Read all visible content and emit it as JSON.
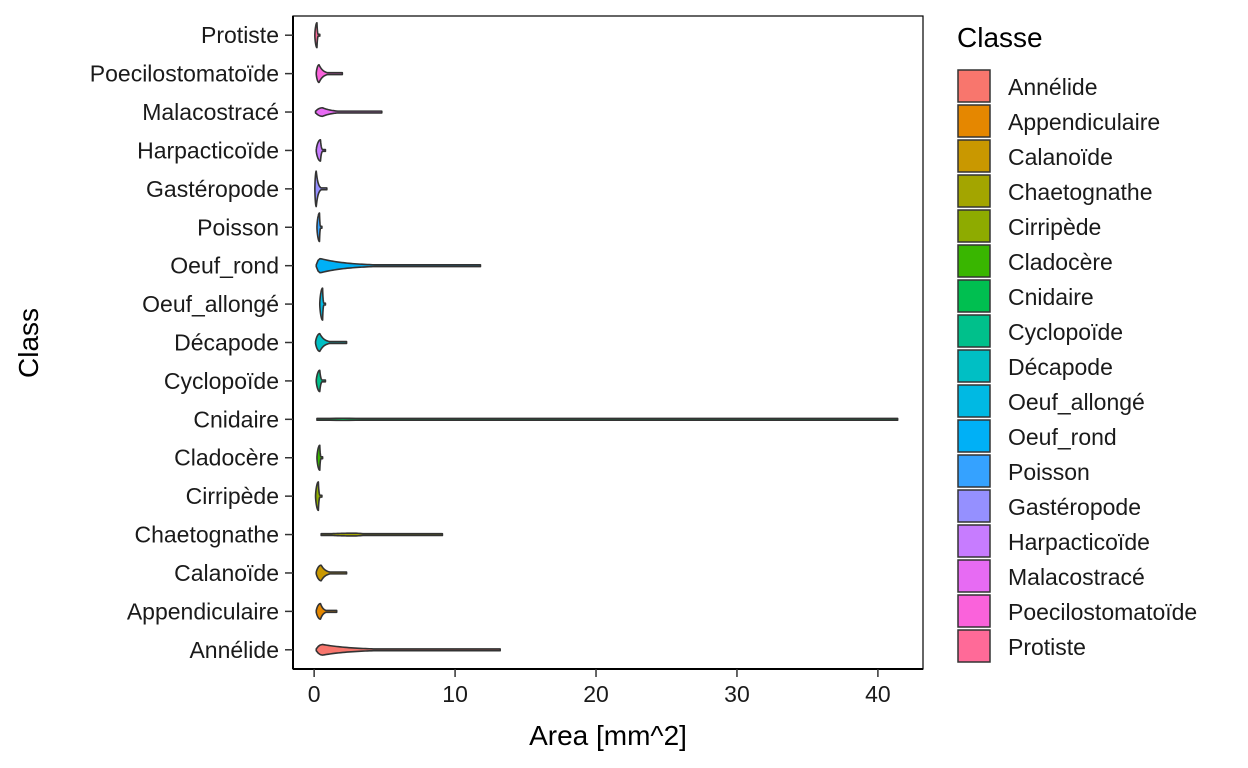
{
  "chart_data": {
    "type": "violin",
    "orientation": "horizontal",
    "xlabel": "Area [mm^2]",
    "ylabel": "Class",
    "xlim": [
      -1.5,
      43.2
    ],
    "xticks": [
      0,
      10,
      20,
      30,
      40
    ],
    "grid": false,
    "legend": {
      "title": "Classe",
      "position": "right",
      "entries": [
        {
          "label": "Annélide",
          "color": "#F8766D"
        },
        {
          "label": "Appendiculaire",
          "color": "#E58700"
        },
        {
          "label": "Calanoïde",
          "color": "#C99800"
        },
        {
          "label": "Chaetognathe",
          "color": "#A3A500"
        },
        {
          "label": "Cirripède",
          "color": "#8EAB00"
        },
        {
          "label": "Cladocère",
          "color": "#39B600"
        },
        {
          "label": "Cnidaire",
          "color": "#00BF50"
        },
        {
          "label": "Cyclopoïde",
          "color": "#00C08B"
        },
        {
          "label": "Décapode",
          "color": "#00BFC4"
        },
        {
          "label": "Oeuf_allongé",
          "color": "#00B9E3"
        },
        {
          "label": "Oeuf_rond",
          "color": "#00B0F6"
        },
        {
          "label": "Poisson",
          "color": "#35A2FF"
        },
        {
          "label": "Gastéropode",
          "color": "#9590FF"
        },
        {
          "label": "Harpacticoïde",
          "color": "#C77CFF"
        },
        {
          "label": "Malacostracé",
          "color": "#E76BF3"
        },
        {
          "label": "Poecilostomatoïde",
          "color": "#FA62DB"
        },
        {
          "label": "Protiste",
          "color": "#FF6A98"
        }
      ]
    },
    "series": [
      {
        "category": "Protiste",
        "color": "#FF6A98",
        "min": 0.05,
        "max": 0.4,
        "peak": 0.2,
        "width": 0.35
      },
      {
        "category": "Poecilostomatoïde",
        "color": "#FA62DB",
        "min": 0.15,
        "max": 2.0,
        "peak": 0.35,
        "width": 0.25
      },
      {
        "category": "Malacostracé",
        "color": "#E76BF3",
        "min": 0.1,
        "max": 4.8,
        "peak": 0.6,
        "width": 0.12
      },
      {
        "category": "Harpacticoïde",
        "color": "#C77CFF",
        "min": 0.15,
        "max": 0.8,
        "peak": 0.45,
        "width": 0.3
      },
      {
        "category": "Gastéropode",
        "color": "#9590FF",
        "min": 0.05,
        "max": 0.9,
        "peak": 0.15,
        "width": 0.5
      },
      {
        "category": "Poisson",
        "color": "#35A2FF",
        "min": 0.2,
        "max": 0.55,
        "peak": 0.38,
        "width": 0.4
      },
      {
        "category": "Oeuf_rond",
        "color": "#00B0F6",
        "min": 0.15,
        "max": 11.8,
        "peak": 0.45,
        "width": 0.2
      },
      {
        "category": "Oeuf_allongé",
        "color": "#00B9E3",
        "min": 0.4,
        "max": 0.8,
        "peak": 0.6,
        "width": 0.45
      },
      {
        "category": "Décapode",
        "color": "#00BFC4",
        "min": 0.1,
        "max": 2.3,
        "peak": 0.4,
        "width": 0.25
      },
      {
        "category": "Cyclopoïde",
        "color": "#00C08B",
        "min": 0.15,
        "max": 0.8,
        "peak": 0.4,
        "width": 0.3
      },
      {
        "category": "Cnidaire",
        "color": "#00BF50",
        "min": 0.2,
        "max": 41.4,
        "peak": 2.0,
        "width": 0.03
      },
      {
        "category": "Cladocère",
        "color": "#39B600",
        "min": 0.2,
        "max": 0.6,
        "peak": 0.4,
        "width": 0.35
      },
      {
        "category": "Cirripède",
        "color": "#8EAB00",
        "min": 0.1,
        "max": 0.55,
        "peak": 0.3,
        "width": 0.4
      },
      {
        "category": "Chaetognathe",
        "color": "#A3A500",
        "min": 0.5,
        "max": 9.1,
        "peak": 3.0,
        "width": 0.04
      },
      {
        "category": "Calanoïde",
        "color": "#C99800",
        "min": 0.15,
        "max": 2.3,
        "peak": 0.5,
        "width": 0.22
      },
      {
        "category": "Appendiculaire",
        "color": "#E58700",
        "min": 0.15,
        "max": 1.6,
        "peak": 0.45,
        "width": 0.22
      },
      {
        "category": "Annélide",
        "color": "#F8766D",
        "min": 0.15,
        "max": 13.2,
        "peak": 0.6,
        "width": 0.15
      }
    ]
  }
}
